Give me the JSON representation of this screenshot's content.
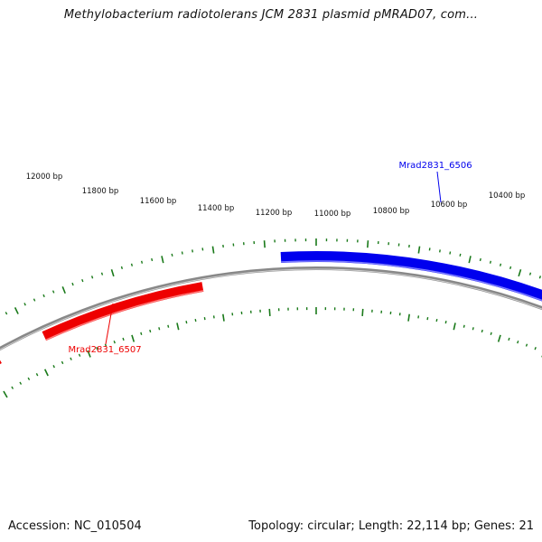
{
  "title": "Methylobacterium radiotolerans JCM 2831 plasmid pMRAD07, com...",
  "footer": {
    "accession": "Accession: NC_010504",
    "stats": "Topology: circular; Length: 22,114 bp; Genes: 21"
  },
  "scale_labels": [
    "12000 bp",
    "11800 bp",
    "11600 bp",
    "11400 bp",
    "11200 bp",
    "11000 bp",
    "10800 bp",
    "10600 bp",
    "10400 bp"
  ],
  "genes": [
    {
      "name": "Mrad2831_6506",
      "strand": "forward",
      "color": "#0000ee"
    },
    {
      "name": "Mrad2831_6507",
      "strand": "reverse",
      "color": "#ee0000"
    }
  ],
  "colors": {
    "backbone": "#888888",
    "ticks": "#1a7a1a"
  }
}
